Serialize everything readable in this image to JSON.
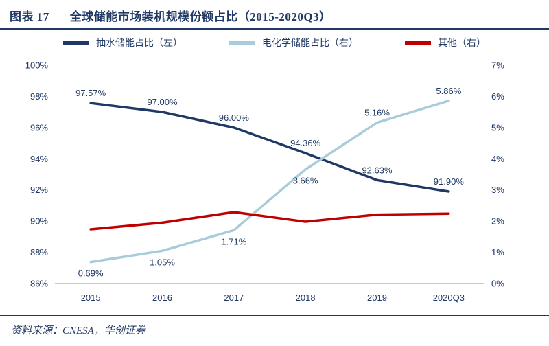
{
  "header": {
    "label": "图表 17",
    "title": "全球储能市场装机规模份额占比（2015-2020Q3）"
  },
  "footer": {
    "source": "资料来源：CNESA，华创证券"
  },
  "colors": {
    "navy": "#1f3864",
    "light_blue": "#a8ccd9",
    "red": "#c00000",
    "axis_text": "#1f3864",
    "axis_line": "#8a97a8"
  },
  "chart_data": {
    "type": "line",
    "title": "全球储能市场装机规模份额占比（2015-2020Q3）",
    "categories": [
      "2015",
      "2016",
      "2017",
      "2018",
      "2019",
      "2020Q3"
    ],
    "left_axis": {
      "min": 86,
      "max": 100,
      "ticks": [
        86,
        88,
        90,
        92,
        94,
        96,
        98,
        100
      ],
      "suffix": "%"
    },
    "right_axis": {
      "min": 0,
      "max": 7,
      "ticks": [
        0,
        1,
        2,
        3,
        4,
        5,
        6,
        7
      ],
      "suffix": "%"
    },
    "grid": false,
    "legend_position": "top",
    "series": [
      {
        "key": "pumped-hydro",
        "name": "抽水储能占比（左）",
        "axis": "left",
        "color": "#1f3864",
        "values": [
          97.57,
          97.0,
          96.0,
          94.36,
          92.63,
          91.9
        ],
        "labels": [
          "97.57%",
          "97.00%",
          "96.00%",
          "94.36%",
          "92.63%",
          "91.90%"
        ],
        "label_positions": [
          "above",
          "above",
          "above",
          "above",
          "above",
          "above"
        ]
      },
      {
        "key": "electrochemical",
        "name": "电化学储能占比（右）",
        "axis": "right",
        "color": "#a8ccd9",
        "values": [
          0.69,
          1.05,
          1.71,
          3.66,
          5.16,
          5.86
        ],
        "labels": [
          "0.69%",
          "1.05%",
          "1.71%",
          "3.66%",
          "5.16%",
          "5.86%"
        ],
        "label_positions": [
          "below",
          "below",
          "below",
          "below",
          "above",
          "above"
        ]
      },
      {
        "key": "other",
        "name": "其他（右）",
        "axis": "right",
        "color": "#c00000",
        "values": [
          1.74,
          1.95,
          2.29,
          1.98,
          2.21,
          2.24
        ]
      }
    ]
  }
}
